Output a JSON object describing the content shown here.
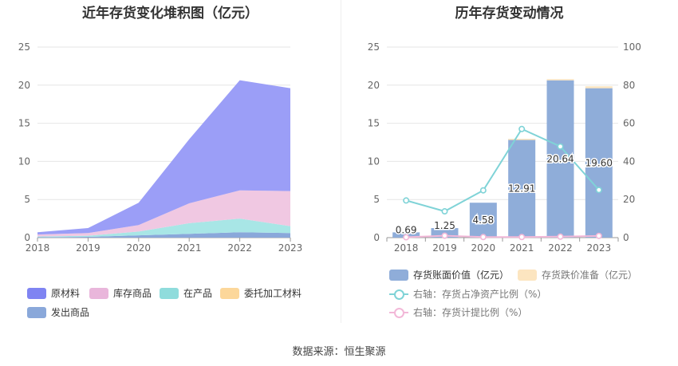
{
  "source_label": "数据来源：恒生聚源",
  "chart_data": [
    {
      "type": "area",
      "title": "近年存货变化堆积图（亿元）",
      "x": [
        "2018",
        "2019",
        "2020",
        "2021",
        "2022",
        "2023"
      ],
      "ylim": [
        0,
        25
      ],
      "yticks": [
        0,
        5,
        10,
        15,
        20,
        25
      ],
      "stacked": true,
      "series": [
        {
          "name": "发出商品",
          "color": "#8aa8da",
          "values": [
            0.05,
            0.1,
            0.3,
            0.5,
            0.7,
            0.6
          ]
        },
        {
          "name": "委托加工材料",
          "color": "#fcd79a",
          "values": [
            0.0,
            0.0,
            0.0,
            0.0,
            0.0,
            0.0
          ]
        },
        {
          "name": "在产品",
          "color": "#a8e6e6",
          "values": [
            0.1,
            0.15,
            0.5,
            1.4,
            1.8,
            0.9
          ]
        },
        {
          "name": "库存商品",
          "color": "#f0c8e2",
          "values": [
            0.25,
            0.35,
            0.85,
            2.6,
            3.7,
            4.6
          ]
        },
        {
          "name": "原材料",
          "color": "#9b9ef7",
          "values": [
            0.3,
            0.65,
            2.93,
            8.41,
            14.44,
            13.5
          ]
        }
      ],
      "legend_order": [
        "原材料",
        "库存商品",
        "在产品",
        "委托加工材料",
        "发出商品"
      ],
      "legend_colors": [
        "#7f84f2",
        "#e9b6db",
        "#8fdcdc",
        "#fcd79a",
        "#8aa8da"
      ]
    },
    {
      "type": "bar",
      "title": "历年存货变动情况",
      "categories": [
        "2018",
        "2019",
        "2020",
        "2021",
        "2022",
        "2023"
      ],
      "ylim_left": [
        0,
        25
      ],
      "yticks_left": [
        0,
        5,
        10,
        15,
        20,
        25
      ],
      "ylim_right": [
        0,
        100
      ],
      "yticks_right": [
        0,
        20,
        40,
        60,
        80,
        100
      ],
      "series": [
        {
          "name": "存货账面价值（亿元）",
          "type": "bar",
          "color": "#8fadd9",
          "values": [
            0.69,
            1.25,
            4.58,
            12.91,
            20.64,
            19.6
          ],
          "labels": [
            "0.69",
            "1.25",
            "4.58",
            "12.91",
            "20.64",
            "19.60"
          ]
        },
        {
          "name": "存货跌价准备（亿元）",
          "type": "bar",
          "color": "#fce5c0",
          "values": [
            0.0,
            0.0,
            0.0,
            0.05,
            0.15,
            0.25
          ]
        },
        {
          "name": "右轴：存货占净资产比例（%）",
          "type": "line",
          "axis": "right",
          "color": "#7fd3d7",
          "values": [
            19.5,
            13.8,
            24.8,
            57.0,
            47.8,
            25.0
          ]
        },
        {
          "name": "右轴：存货计提比例（%）",
          "type": "line",
          "axis": "right",
          "color": "#f2b8d8",
          "values": [
            0.2,
            1.0,
            0.3,
            0.3,
            0.5,
            0.9
          ]
        }
      ]
    }
  ]
}
